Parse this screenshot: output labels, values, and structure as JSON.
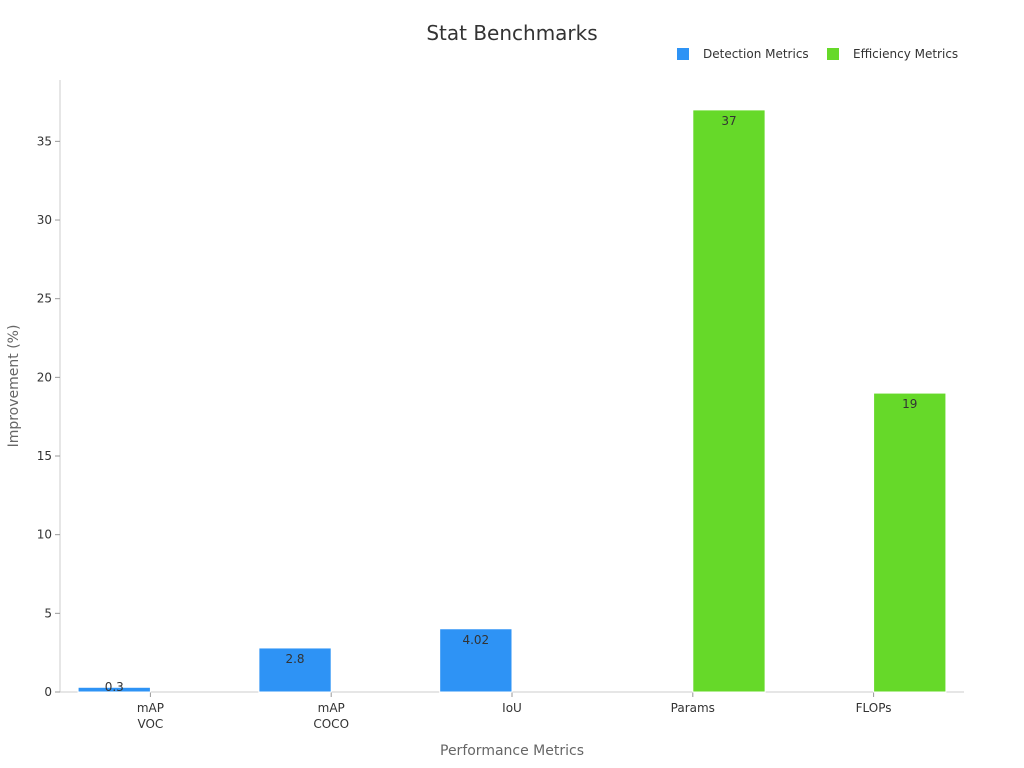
{
  "chart_data": {
    "type": "bar",
    "title": "Stat Benchmarks",
    "xlabel": "Performance Metrics",
    "ylabel": "Improvement (%)",
    "ylim": [
      0,
      38.9
    ],
    "yticks": [
      0,
      5,
      10,
      15,
      20,
      25,
      30,
      35
    ],
    "categories": [
      [
        "mAP",
        "VOC"
      ],
      [
        "mAP",
        "COCO"
      ],
      [
        "IoU"
      ],
      [
        "Params"
      ],
      [
        "FLOPs"
      ]
    ],
    "series": [
      {
        "name": "Detection Metrics",
        "color": "#2e93f5",
        "values": [
          0.3,
          2.8,
          4.02,
          null,
          null
        ],
        "labels": [
          "0.3",
          "2.8",
          "4.02",
          "",
          ""
        ]
      },
      {
        "name": "Efficiency Metrics",
        "color": "#66d929",
        "values": [
          null,
          null,
          null,
          37,
          19
        ],
        "labels": [
          "",
          "",
          "",
          "37",
          "19"
        ]
      }
    ],
    "legend_position": "top-right",
    "grid": false
  }
}
